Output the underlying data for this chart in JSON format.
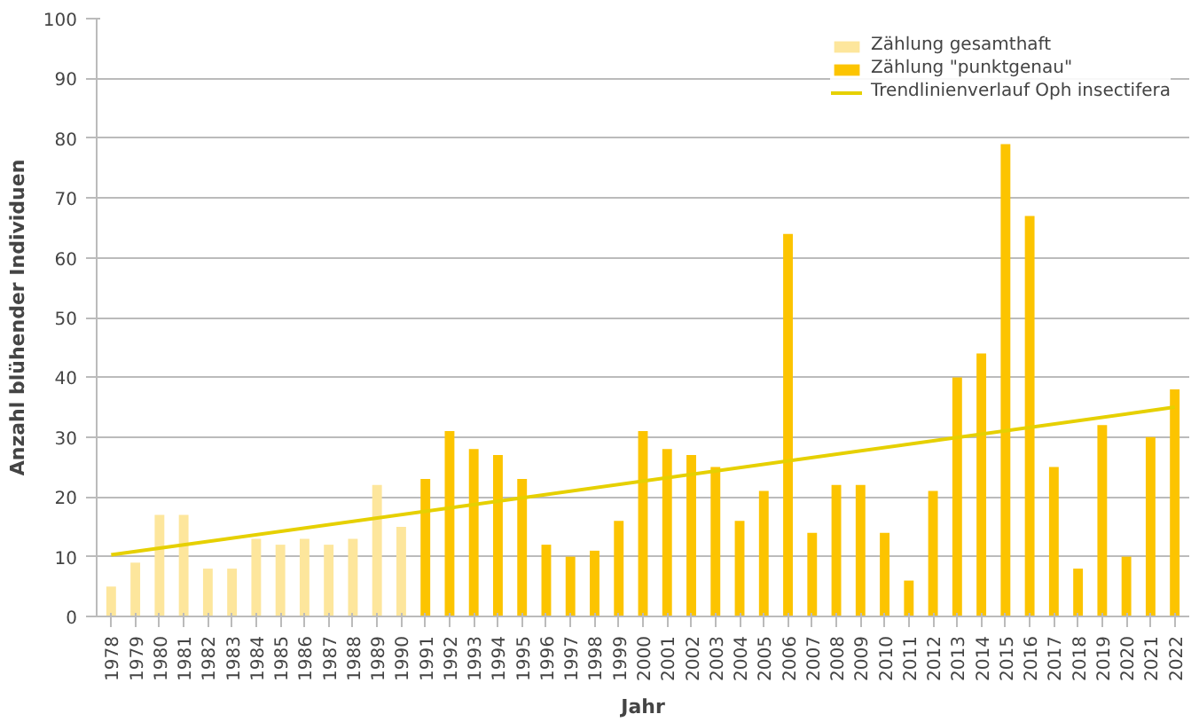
{
  "chart_data": {
    "type": "bar",
    "xlabel": "Jahr",
    "ylabel": "Anzahl blühender Individuen",
    "categories": [
      "1978",
      "1979",
      "1980",
      "1981",
      "1982",
      "1983",
      "1984",
      "1985",
      "1986",
      "1987",
      "1988",
      "1989",
      "1990",
      "1991",
      "1992",
      "1993",
      "1994",
      "1995",
      "1996",
      "1997",
      "1998",
      "1999",
      "2000",
      "2001",
      "2002",
      "2003",
      "2004",
      "2005",
      "2006",
      "2007",
      "2008",
      "2009",
      "2010",
      "2011",
      "2012",
      "2013",
      "2014",
      "2015",
      "2016",
      "2017",
      "2018",
      "2019",
      "2020",
      "2021",
      "2022"
    ],
    "series": [
      {
        "name": "Zählung gesamthaft",
        "color": "#fde69c",
        "values": [
          5,
          9,
          17,
          17,
          8,
          8,
          13,
          12,
          13,
          12,
          13,
          22,
          15,
          null,
          null,
          null,
          null,
          null,
          null,
          null,
          null,
          null,
          null,
          null,
          null,
          null,
          null,
          null,
          null,
          null,
          null,
          null,
          null,
          null,
          null,
          null,
          null,
          null,
          null,
          null,
          null,
          null,
          null,
          null,
          null
        ]
      },
      {
        "name": "Zählung \"punktgenau\"",
        "color": "#fcc400",
        "values": [
          null,
          null,
          null,
          null,
          null,
          null,
          null,
          null,
          null,
          null,
          null,
          null,
          null,
          23,
          31,
          28,
          27,
          23,
          12,
          10,
          11,
          16,
          31,
          28,
          27,
          25,
          16,
          21,
          64,
          14,
          22,
          22,
          14,
          6,
          21,
          40,
          44,
          79,
          67,
          25,
          8,
          32,
          10,
          30,
          38
        ]
      },
      {
        "name": "Trendlinienverlauf Oph insectifera",
        "type": "line",
        "color": "#e6d000",
        "values": [
          10.3,
          null,
          null,
          null,
          null,
          null,
          null,
          null,
          null,
          null,
          null,
          null,
          null,
          null,
          null,
          null,
          null,
          null,
          null,
          null,
          null,
          null,
          null,
          null,
          null,
          null,
          null,
          null,
          null,
          null,
          null,
          null,
          null,
          null,
          null,
          null,
          null,
          null,
          null,
          null,
          null,
          null,
          null,
          null,
          35
        ]
      }
    ],
    "ylim": [
      0,
      100
    ],
    "yticks": [
      0,
      10,
      20,
      30,
      40,
      50,
      60,
      70,
      80,
      90,
      100
    ],
    "grid": "y",
    "legend": "top right"
  }
}
